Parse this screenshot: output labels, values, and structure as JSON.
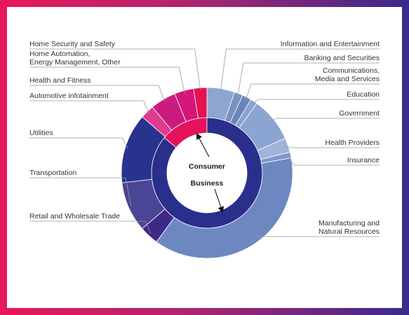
{
  "chart_data": {
    "type": "pie",
    "subtype": "nested-donut",
    "inner_ring": [
      {
        "name": "Consumer",
        "value": 14,
        "color": "#e5125c"
      },
      {
        "name": "Business",
        "value": 86,
        "color": "#2a2f8c"
      }
    ],
    "center_labels": {
      "consumer": "Consumer",
      "business": "Business"
    },
    "outer_ring": [
      {
        "name": "Information and Entertainment",
        "value": 5.2,
        "color": "#8ea5d0",
        "group": "Business"
      },
      {
        "name": "Banking and Securities",
        "value": 1.6,
        "color": "#7a90c2",
        "group": "Business"
      },
      {
        "name": "Communications, Media and Services",
        "value": 1.7,
        "color": "#6a84bb",
        "group": "Business"
      },
      {
        "name": "Education",
        "value": 1.3,
        "color": "#8aa3cf",
        "group": "Business"
      },
      {
        "name": "Government",
        "value": 8.4,
        "color": "#8ba5d3",
        "group": "Business"
      },
      {
        "name": "Health Providers",
        "value": 2.7,
        "color": "#a0b4da",
        "group": "Business"
      },
      {
        "name": "Insurance",
        "value": 1.1,
        "color": "#7f98c9",
        "group": "Business"
      },
      {
        "name": "Manufacturing and Natural Resources",
        "value": 37.5,
        "color": "#6d88c1",
        "group": "Business"
      },
      {
        "name": "Retail and Wholesale Trade",
        "value": 3.6,
        "color": "#3d2a86",
        "group": "Business"
      },
      {
        "name": "Transportation",
        "value": 9.4,
        "color": "#4b4597",
        "group": "Business"
      },
      {
        "name": "Utilities",
        "value": 13.1,
        "color": "#27338e",
        "group": "Business"
      },
      {
        "name": "Automotive infotainment",
        "value": 2.6,
        "color": "#e03a8c",
        "group": "Consumer"
      },
      {
        "name": "Health and Fitness",
        "value": 4.8,
        "color": "#cc1b80",
        "group": "Consumer"
      },
      {
        "name": "Home Automation,\nEnergy Management, Other",
        "value": 3.6,
        "color": "#d4157a",
        "group": "Consumer"
      },
      {
        "name": "Home Security and Safety",
        "value": 2.5,
        "color": "#e8104f",
        "group": "Consumer"
      }
    ],
    "title": "",
    "legend": "none"
  }
}
